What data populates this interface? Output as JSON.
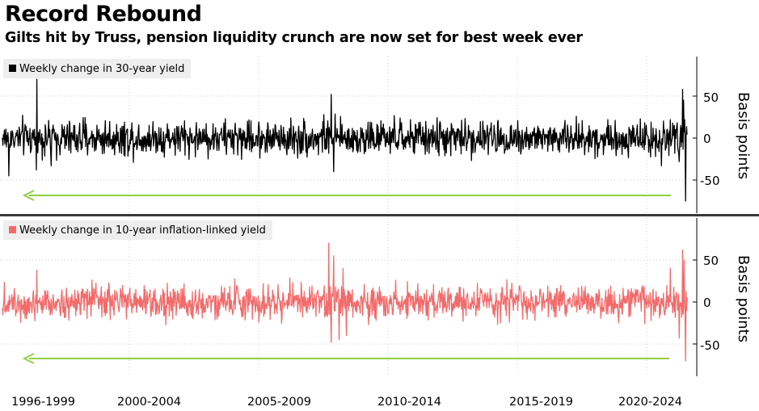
{
  "header": {
    "title": "Record Rebound",
    "subtitle": "Gilts hit by Truss, pension liquidity crunch are now set for best week ever"
  },
  "colors": {
    "top_series": "#000000",
    "bottom_series": "#f26b6b",
    "arrow": "#8fd13f",
    "separator": "#3a3a3a",
    "grid": "#cfcfcf"
  },
  "chart_data": [
    {
      "type": "line",
      "series": [
        {
          "name": "Weekly change in 30-year yield",
          "color": "#000000",
          "noise_sd": 10.5,
          "spikes": [
            {
              "x": 1997.35,
              "y": 70
            },
            {
              "x": 1997.33,
              "y": -38
            },
            {
              "x": 1996.25,
              "y": -45
            },
            {
              "x": 1997.9,
              "y": -33
            },
            {
              "x": 2008.85,
              "y": 52
            },
            {
              "x": 2008.95,
              "y": -40
            },
            {
              "x": 2008.55,
              "y": 28
            },
            {
              "x": 2021.75,
              "y": -33
            },
            {
              "x": 2022.1,
              "y": 22
            },
            {
              "x": 2022.45,
              "y": -28
            },
            {
              "x": 2022.58,
              "y": 58
            },
            {
              "x": 2022.62,
              "y": 45
            },
            {
              "x": 2022.66,
              "y": 22
            },
            {
              "x": 2022.7,
              "y": -75
            }
          ]
        }
      ],
      "y_ticks": [
        50,
        0,
        -50
      ],
      "y_tick_labels": [
        "50",
        "0",
        "-50"
      ],
      "ylabel": "Basis points",
      "ylim": [
        -90,
        100
      ],
      "xlim": [
        1996.0,
        2022.75
      ],
      "grid": true,
      "legend": "top-left"
    },
    {
      "type": "line",
      "series": [
        {
          "name": "Weekly change in 10-year inflation-linked yield",
          "color": "#f26b6b",
          "noise_sd": 10.0,
          "spikes": [
            {
              "x": 1997.35,
              "y": 38
            },
            {
              "x": 2008.75,
              "y": 70
            },
            {
              "x": 2008.85,
              "y": -48
            },
            {
              "x": 2008.95,
              "y": 55
            },
            {
              "x": 2009.15,
              "y": -45
            },
            {
              "x": 2009.3,
              "y": 40
            },
            {
              "x": 2009.45,
              "y": -40
            },
            {
              "x": 2022.1,
              "y": 40
            },
            {
              "x": 2022.45,
              "y": -43
            },
            {
              "x": 2022.58,
              "y": 62
            },
            {
              "x": 2022.63,
              "y": 50
            },
            {
              "x": 2022.7,
              "y": -70
            }
          ]
        }
      ],
      "y_ticks": [
        50,
        0,
        -50
      ],
      "y_tick_labels": [
        "50",
        "0",
        "-50"
      ],
      "ylabel": "Basis points",
      "ylim": [
        -90,
        100
      ],
      "xlim": [
        1996.0,
        2022.75
      ],
      "grid": true,
      "legend": "top-left"
    }
  ],
  "x_axis": {
    "tick_labels": [
      "1996-1999",
      "2000-2004",
      "2005-2009",
      "2010-2014",
      "2015-2019",
      "2020-2024"
    ]
  }
}
